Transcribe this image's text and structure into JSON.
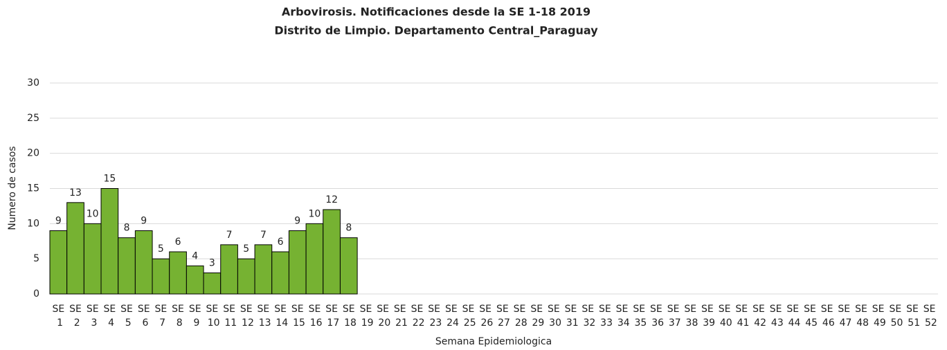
{
  "chart_data": {
    "type": "bar",
    "title": "Arbovirosis. Notificaciones desde la SE 1-18 2019",
    "subtitle": "Distrito de Limpio. Departamento Central_Paraguay",
    "x_label": "Semana Epidemiologica",
    "y_label": "Numero de casos",
    "categories": [
      "SE 1",
      "SE 2",
      "SE 3",
      "SE 4",
      "SE 5",
      "SE 6",
      "SE 7",
      "SE 8",
      "SE 9",
      "SE 10",
      "SE 11",
      "SE 12",
      "SE 13",
      "SE 14",
      "SE 15",
      "SE 16",
      "SE 17",
      "SE 18",
      "SE 19",
      "SE 20",
      "SE 21",
      "SE 22",
      "SE 23",
      "SE 24",
      "SE 25",
      "SE 26",
      "SE 27",
      "SE 28",
      "SE 29",
      "SE 30",
      "SE 31",
      "SE 32",
      "SE 33",
      "SE 34",
      "SE 35",
      "SE 36",
      "SE 37",
      "SE 38",
      "SE 39",
      "SE 40",
      "SE 41",
      "SE 42",
      "SE 43",
      "SE 44",
      "SE 45",
      "SE 46",
      "SE 47",
      "SE 48",
      "SE 49",
      "SE 50",
      "SE 51",
      "SE 52"
    ],
    "values": [
      9,
      13,
      10,
      15,
      8,
      9,
      5,
      6,
      4,
      3,
      7,
      5,
      7,
      6,
      9,
      10,
      12,
      8,
      null,
      null,
      null,
      null,
      null,
      null,
      null,
      null,
      null,
      null,
      null,
      null,
      null,
      null,
      null,
      null,
      null,
      null,
      null,
      null,
      null,
      null,
      null,
      null,
      null,
      null,
      null,
      null,
      null,
      null,
      null,
      null,
      null,
      null
    ],
    "color": "#76b232",
    "ylim": [
      0,
      30
    ],
    "yticks": [
      0,
      5,
      10,
      15,
      20,
      25,
      30
    ],
    "grid": true
  }
}
